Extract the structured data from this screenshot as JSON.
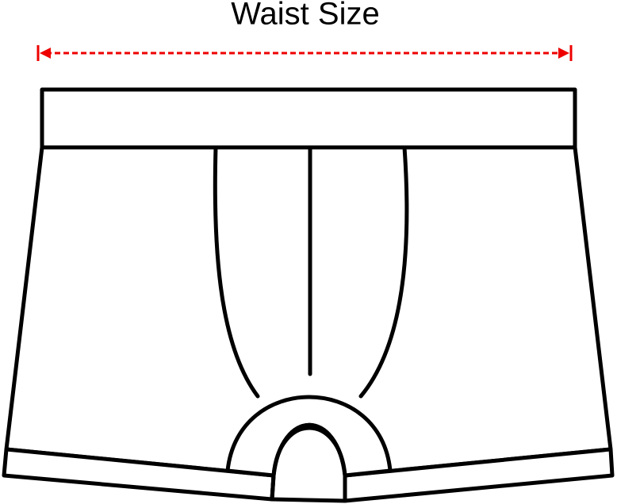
{
  "label": "Waist Size"
}
